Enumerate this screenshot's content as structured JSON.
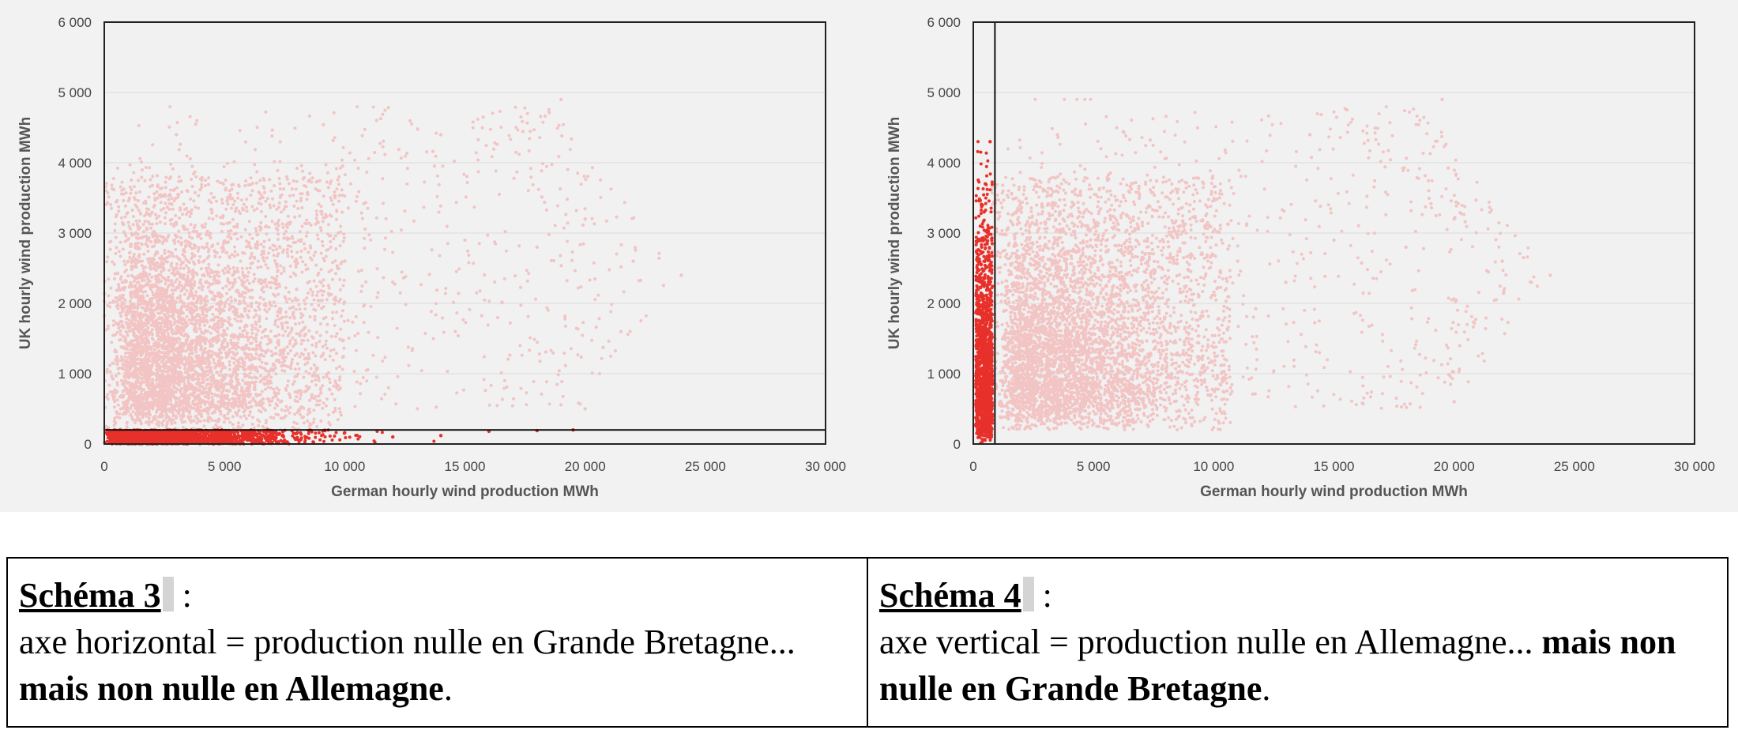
{
  "chart_data": [
    {
      "type": "scatter",
      "xlabel": "German hourly wind production MWh",
      "ylabel": "UK hourly wind production MWh",
      "xlim": [
        0,
        30000
      ],
      "ylim": [
        0,
        6000
      ],
      "xticks": [
        0,
        5000,
        10000,
        15000,
        20000,
        25000,
        30000
      ],
      "yticks": [
        0,
        1000,
        2000,
        3000,
        4000,
        5000,
        6000
      ],
      "x_tick_labels": [
        "0",
        "5 000",
        "10 000",
        "15 000",
        "20 000",
        "25 000",
        "30 000"
      ],
      "y_tick_labels": [
        "0",
        "1 000",
        "2 000",
        "3 000",
        "4 000",
        "5 000",
        "6 000"
      ],
      "grid": "horizontal",
      "series": [
        {
          "color": "#f2c4c4",
          "points": [
            [
              1500,
              1200
            ],
            [
              3000,
              1600
            ],
            [
              4500,
              1400
            ],
            [
              6000,
              1800
            ],
            [
              8000,
              2200
            ],
            [
              10000,
              2600
            ],
            [
              12000,
              2300
            ],
            [
              15000,
              2900
            ],
            [
              18000,
              2800
            ],
            [
              20000,
              3200
            ],
            [
              22000,
              2600
            ],
            [
              24000,
              2400
            ],
            [
              3000,
              4400
            ],
            [
              14000,
              4400
            ],
            [
              19000,
              4900
            ],
            [
              20000,
              500
            ]
          ]
        },
        {
          "color": "#e8302a",
          "points": [
            [
              500,
              100
            ],
            [
              2000,
              80
            ],
            [
              4000,
              120
            ],
            [
              6000,
              90
            ],
            [
              8000,
              150
            ],
            [
              10000,
              160
            ],
            [
              12000,
              100
            ],
            [
              14000,
              120
            ],
            [
              16000,
              180
            ],
            [
              18000,
              190
            ],
            [
              19500,
              200
            ]
          ]
        }
      ],
      "highlight_band": {
        "axis": "y",
        "range": [
          0,
          200
        ]
      }
    },
    {
      "type": "scatter",
      "xlabel": "German hourly wind production MWh",
      "ylabel": "UK hourly wind production MWh",
      "xlim": [
        0,
        30000
      ],
      "ylim": [
        0,
        6000
      ],
      "xticks": [
        0,
        5000,
        10000,
        15000,
        20000,
        25000,
        30000
      ],
      "yticks": [
        0,
        1000,
        2000,
        3000,
        4000,
        5000,
        6000
      ],
      "x_tick_labels": [
        "0",
        "5 000",
        "10 000",
        "15 000",
        "20 000",
        "25 000",
        "30 000"
      ],
      "y_tick_labels": [
        "0",
        "1 000",
        "2 000",
        "3 000",
        "4 000",
        "5 000",
        "6 000"
      ],
      "grid": "horizontal",
      "series": [
        {
          "color": "#f2c4c4",
          "points": [
            [
              2500,
              1200
            ],
            [
              4000,
              1600
            ],
            [
              5500,
              1400
            ],
            [
              7000,
              1800
            ],
            [
              9000,
              2200
            ],
            [
              11000,
              2600
            ],
            [
              13000,
              2300
            ],
            [
              15000,
              2900
            ],
            [
              18000,
              2800
            ],
            [
              20000,
              3200
            ],
            [
              22000,
              2600
            ],
            [
              24000,
              2400
            ],
            [
              3500,
              4400
            ],
            [
              14000,
              4400
            ],
            [
              19500,
              4900
            ],
            [
              20000,
              600
            ]
          ]
        },
        {
          "color": "#e8302a",
          "points": [
            [
              300,
              200
            ],
            [
              400,
              800
            ],
            [
              500,
              1500
            ],
            [
              600,
              2200
            ],
            [
              350,
              2800
            ],
            [
              450,
              3300
            ],
            [
              500,
              3700
            ],
            [
              700,
              4300
            ]
          ]
        }
      ],
      "highlight_band": {
        "axis": "x",
        "range": [
          0,
          900
        ]
      }
    }
  ],
  "captions": [
    {
      "title": "Schéma 3",
      "colon": " :",
      "line_normal": "axe horizontal = production nulle en Grande Bretagne... ",
      "line_bold": "mais non nulle en Allemagne",
      "line_end": "."
    },
    {
      "title": "Schéma 4",
      "colon": " :",
      "line_normal": "axe vertical = production nulle en Allemagne... ",
      "line_bold": "mais non nulle en Grande Bretagne",
      "line_end": "."
    }
  ]
}
